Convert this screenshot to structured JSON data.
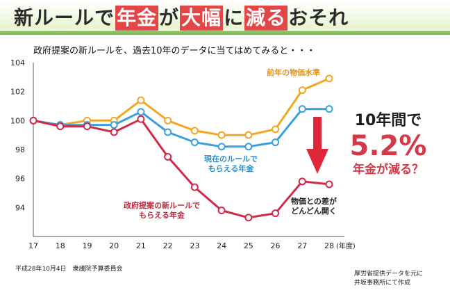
{
  "header": {
    "title_parts": [
      "新ルールで",
      "年金",
      "が",
      "大幅",
      "に",
      "減る",
      "おそれ"
    ]
  },
  "subtitle": "政府提案の新ルールを、過去10年のデータに当てはめてみると・・・",
  "chart_data": {
    "type": "line",
    "x": [
      17,
      18,
      19,
      20,
      21,
      22,
      23,
      24,
      25,
      26,
      27,
      28
    ],
    "x_unit_label": "(年度)",
    "ylim": [
      92,
      104
    ],
    "yticks": [
      94,
      96,
      98,
      100,
      102,
      104
    ],
    "grid": false,
    "series": [
      {
        "name": "前年の物価水準",
        "color": "#f2a623",
        "values": [
          100,
          99.7,
          100.0,
          100.0,
          101.4,
          100.0,
          99.3,
          99.0,
          99.0,
          99.4,
          102.1,
          102.9
        ]
      },
      {
        "name": "現在のルールでもらえる年金",
        "color": "#3aa0dd",
        "values": [
          100,
          99.7,
          99.7,
          99.7,
          100.6,
          99.2,
          98.5,
          98.2,
          98.2,
          98.5,
          100.8,
          100.8
        ]
      },
      {
        "name": "政府提案の新ルールでもらえる年金",
        "color": "#d02a48",
        "values": [
          100,
          99.6,
          99.6,
          99.2,
          100.1,
          97.5,
          95.4,
          93.8,
          93.3,
          93.6,
          95.8,
          95.6
        ]
      }
    ],
    "annotations": {
      "price_label": "前年の物価水準",
      "current_label": [
        "現在のルールで",
        "もらえる年金"
      ],
      "new_label": [
        "政府提案の新ルールで",
        "もらえる年金"
      ],
      "gap_label": [
        "物価との差が",
        "どんどん開く"
      ]
    }
  },
  "headline": {
    "line1": "10年間で",
    "line2": "5.2%",
    "line3": "年金が減る？"
  },
  "footer": {
    "left": "平成28年10月4日　衆議院予算委員会",
    "right": [
      "厚労省提供データを元に",
      "井坂事務所にて作成"
    ]
  },
  "colors": {
    "accent_red": "#d23a4a",
    "banner_green": "#7cc24a",
    "arrow_red": "#e0273a"
  }
}
